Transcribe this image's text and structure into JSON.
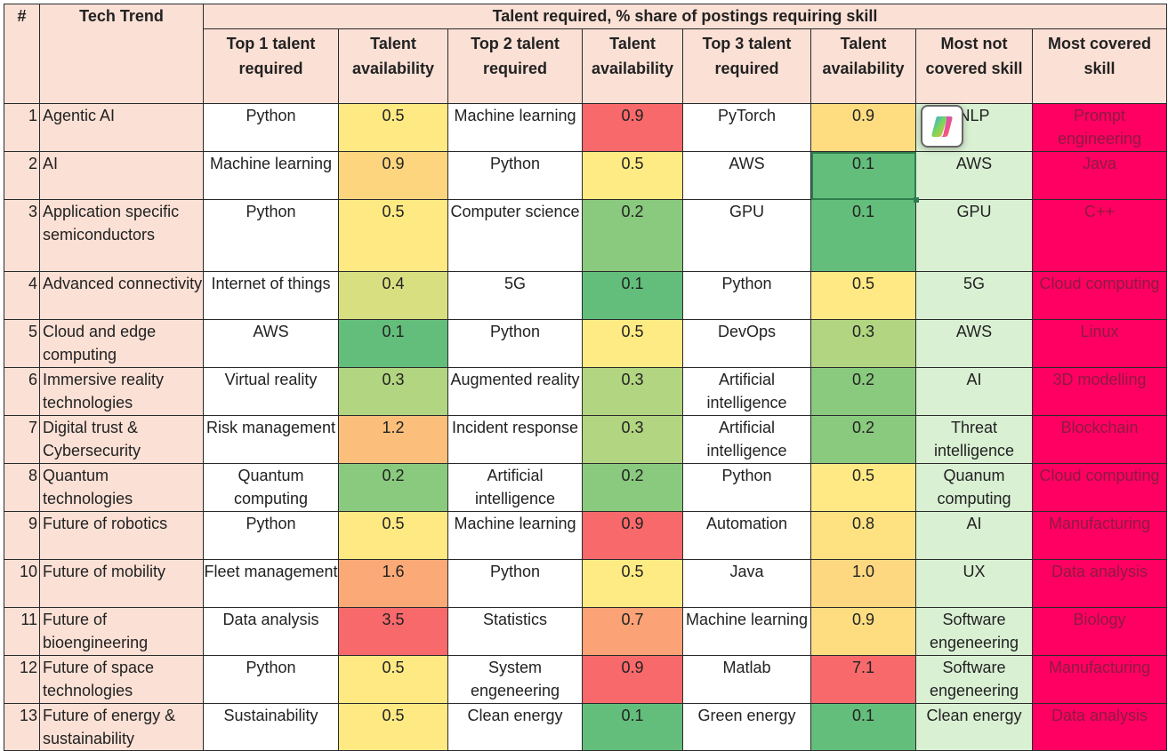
{
  "header": {
    "num": "#",
    "trend": "Tech Trend",
    "group": "Talent required, % share of postings requiring skill",
    "columns": [
      "Top 1 talent required",
      "Talent availability",
      "Top 2 talent required",
      "Talent availability",
      "Top 3 talent required",
      "Talent availability",
      "Most not covered skill",
      "Most covered skill"
    ]
  },
  "colors": {
    "header_bg": "#fbe0d5",
    "not_covered_bg": "#d9f0d3",
    "covered_bg": "#ff0062",
    "covered_text": "#8e1a40"
  },
  "rows": [
    {
      "n": "1",
      "trend": "Agentic AI",
      "t1": "Python",
      "a1": "0.5",
      "c1": "#fee983",
      "t2": "Machine learning",
      "a2": "0.9",
      "c2": "#f8696b",
      "t3": "PyTorch",
      "a3": "0.9",
      "c3": "#fedd81",
      "nc": "NLP",
      "mc": "Prompt engineering"
    },
    {
      "n": "2",
      "trend": "AI",
      "t1": "Machine learning",
      "a1": "0.9",
      "c1": "#fdd57f",
      "t2": "Python",
      "a2": "0.5",
      "c2": "#ffeb84",
      "t3": "AWS",
      "a3": "0.1",
      "c3": "#63be7b",
      "nc": "AWS",
      "mc": "Java"
    },
    {
      "n": "3",
      "trend": "Application specific semiconductors",
      "t1": "Python",
      "a1": "0.5",
      "c1": "#fee983",
      "t2": "Computer science",
      "a2": "0.2",
      "c2": "#8aca7e",
      "t3": "GPU",
      "a3": "0.1",
      "c3": "#63be7b",
      "nc": "GPU",
      "mc": "C++"
    },
    {
      "n": "4",
      "trend": "Advanced connectivity",
      "t1": "Internet of things",
      "a1": "0.4",
      "c1": "#d8df81",
      "t2": "5G",
      "a2": "0.1",
      "c2": "#63be7b",
      "t3": "Python",
      "a3": "0.5",
      "c3": "#ffe984",
      "nc": "5G",
      "mc": "Cloud computing"
    },
    {
      "n": "5",
      "trend": "Cloud and edge computing",
      "t1": "AWS",
      "a1": "0.1",
      "c1": "#63be7b",
      "t2": "Python",
      "a2": "0.5",
      "c2": "#ffeb84",
      "t3": "DevOps",
      "a3": "0.3",
      "c3": "#b1d580",
      "nc": "AWS",
      "mc": "Linux"
    },
    {
      "n": "6",
      "trend": "Immersive reality technologies",
      "t1": "Virtual reality",
      "a1": "0.3",
      "c1": "#b1d580",
      "t2": "Augmented reality",
      "a2": "0.3",
      "c2": "#b1d580",
      "t3": "Artificial intelligence",
      "a3": "0.2",
      "c3": "#8aca7e",
      "nc": "AI",
      "mc": "3D modelling"
    },
    {
      "n": "7",
      "trend": "Digital trust & Cybersecurity",
      "t1": "Risk management",
      "a1": "1.2",
      "c1": "#fcbf7b",
      "t2": "Incident response",
      "a2": "0.3",
      "c2": "#b1d580",
      "t3": "Artificial intelligence",
      "a3": "0.2",
      "c3": "#8aca7e",
      "nc": "Threat intelligence",
      "mc": "Blockchain"
    },
    {
      "n": "8",
      "trend": "Quantum technologies",
      "t1": "Quantum computing",
      "a1": "0.2",
      "c1": "#8aca7e",
      "t2": "Artificial intelligence",
      "a2": "0.2",
      "c2": "#8aca7e",
      "t3": "Python",
      "a3": "0.5",
      "c3": "#ffe984",
      "nc": "Quanum computing",
      "mc": "Cloud computing"
    },
    {
      "n": "9",
      "trend": "Future of robotics",
      "t1": "Python",
      "a1": "0.5",
      "c1": "#fee983",
      "t2": "Machine learning",
      "a2": "0.9",
      "c2": "#f8696b",
      "t3": "Automation",
      "a3": "0.8",
      "c3": "#fee282",
      "nc": "AI",
      "mc": "Manufacturing"
    },
    {
      "n": "10",
      "trend": "Future of mobility",
      "t1": "Fleet management",
      "a1": "1.6",
      "c1": "#fbaa77",
      "t2": "Python",
      "a2": "0.5",
      "c2": "#ffeb84",
      "t3": "Java",
      "a3": "1.0",
      "c3": "#fed880",
      "nc": "UX",
      "mc": "Data analysis"
    },
    {
      "n": "11",
      "trend": "Future of bioengineering",
      "t1": "Data analysis",
      "a1": "3.5",
      "c1": "#f8696b",
      "t2": "Statistics",
      "a2": "0.7",
      "c2": "#fba276",
      "t3": "Machine learning",
      "a3": "0.9",
      "c3": "#fedd81",
      "nc": "Software engeneering",
      "mc": "Biology"
    },
    {
      "n": "12",
      "trend": "Future of space technologies",
      "t1": "Python",
      "a1": "0.5",
      "c1": "#fee983",
      "t2": "System engeneering",
      "a2": "0.9",
      "c2": "#f8696b",
      "t3": "Matlab",
      "a3": "7.1",
      "c3": "#f8696b",
      "nc": "Software engeneering",
      "mc": "Manufacturing"
    },
    {
      "n": "13",
      "trend": "Future of energy & sustainability",
      "t1": "Sustainability",
      "a1": "0.5",
      "c1": "#fee983",
      "t2": "Clean energy",
      "a2": "0.1",
      "c2": "#63be7b",
      "t3": "Green energy",
      "a3": "0.1",
      "c3": "#63be7b",
      "nc": "Clean energy",
      "mc": "Data analysis"
    }
  ]
}
